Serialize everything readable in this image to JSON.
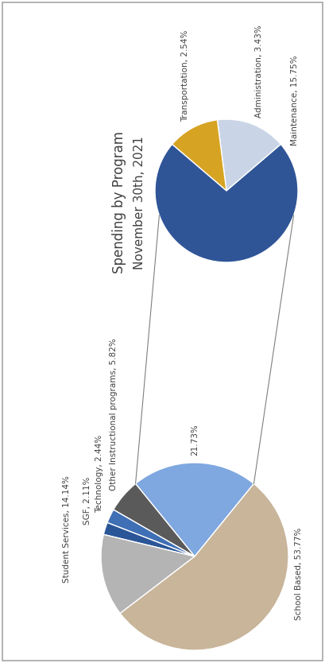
{
  "chart_data": [
    {
      "type": "pie",
      "title": "Spending by Program",
      "subtitle": "November 30th, 2021",
      "values": [
        21.73,
        5.82,
        2.44,
        2.11,
        14.14,
        53.77
      ],
      "value_labels": [
        "21.73%",
        "Other Instructional programs, 5.82%",
        "Technology, 2.44%",
        "SGF, 2.11%",
        "Student Services, 14.14%",
        "School Based, 53.77%"
      ],
      "colors": [
        "#7fa7e0",
        "#5a5a5a",
        "#3f6fb5",
        "#2a5597",
        "#b4b4b4",
        "#c8b59a"
      ],
      "data_labels": true
    },
    {
      "type": "pie",
      "values": [
        3.43,
        2.54,
        15.75
      ],
      "value_labels": [
        "Administration, 3.43%",
        "Transportation, 2.54%",
        "Maintenance, 15.75%"
      ],
      "colors": [
        "#c9d5e6",
        "#d6a323",
        "#2f5597"
      ],
      "data_labels": true
    }
  ]
}
